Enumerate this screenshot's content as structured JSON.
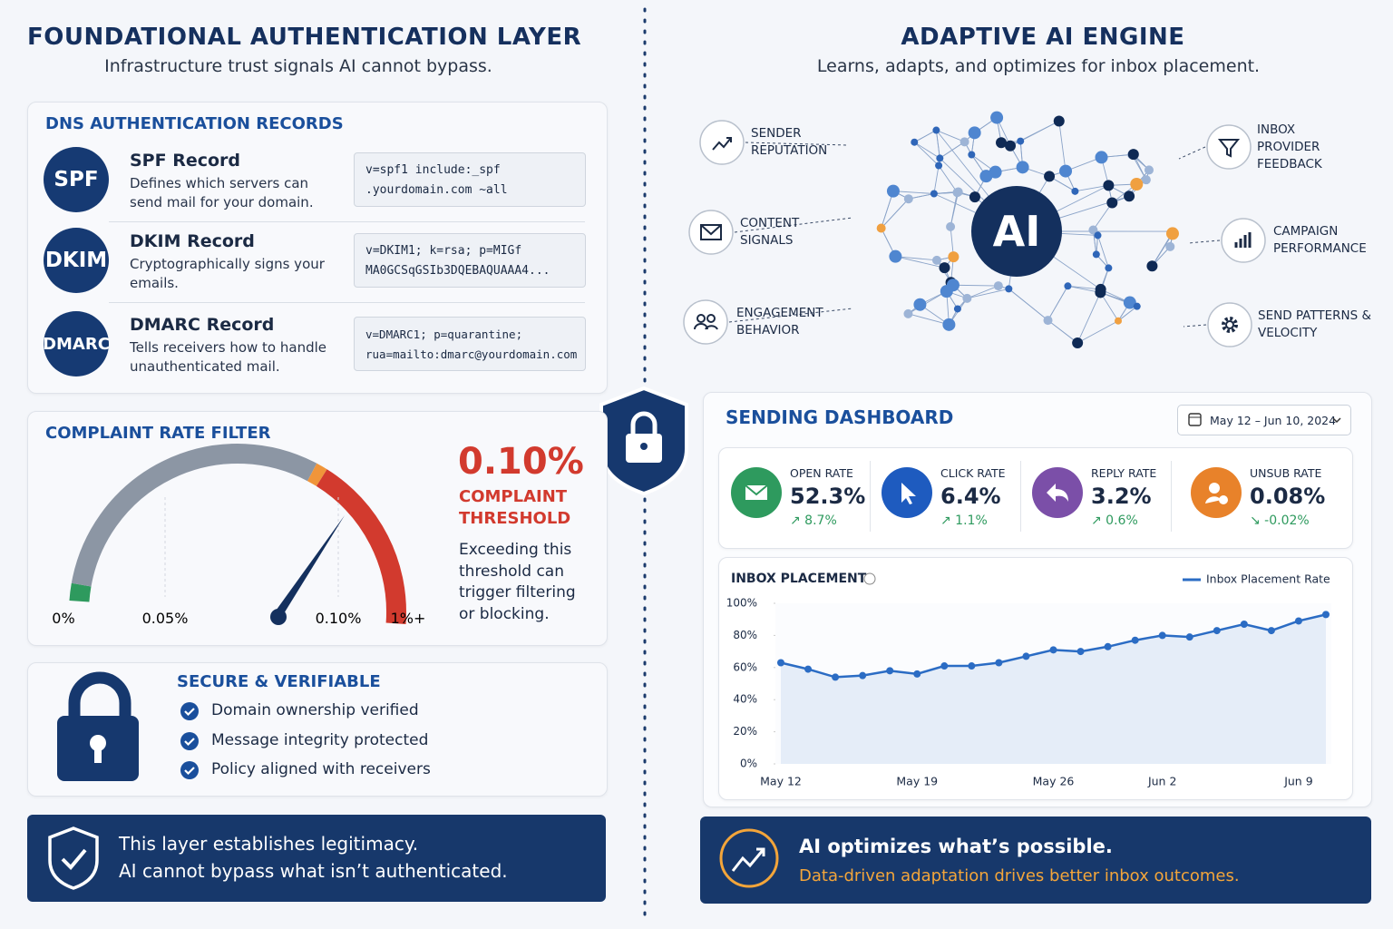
{
  "left": {
    "title": "FOUNDATIONAL AUTHENTICATION LAYER",
    "subtitle": "Infrastructure trust signals AI cannot bypass.",
    "dns": {
      "title": "DNS AUTHENTICATION RECORDS",
      "records": [
        {
          "badge": "SPF",
          "name": "SPF Record",
          "description": "Defines which servers can send mail for your domain.",
          "value": [
            "v=spf1 include:_spf",
            ".yourdomain.com ~all"
          ]
        },
        {
          "badge": "DKIM",
          "name": "DKIM Record",
          "description": "Cryptographically signs your emails.",
          "value": [
            "v=DKIM1; k=rsa; p=MIGf",
            "MA0GCSqGSIb3DQEBAQUAAA4..."
          ]
        },
        {
          "badge": "DMARC",
          "name": "DMARC Record",
          "description": "Tells receivers how to handle unauthenticated mail.",
          "value": [
            "v=DMARC1; p=quarantine;",
            "rua=mailto:dmarc@yourdomain.com"
          ]
        }
      ]
    },
    "complaint": {
      "title": "COMPLAINT RATE FILTER",
      "scale": [
        "0%",
        "0.05%",
        "0.10%",
        "1%+"
      ],
      "threshold": "0.10%",
      "threshold_label": "COMPLAINT THRESHOLD",
      "note": "Exceeding this threshold can trigger filtering or blocking."
    },
    "secure": {
      "title": "SECURE & VERIFIABLE",
      "items": [
        "Domain ownership verified",
        "Message integrity protected",
        "Policy aligned with receivers"
      ]
    },
    "banner": [
      "This layer establishes legitimacy.",
      "AI cannot bypass what isn’t authenticated."
    ]
  },
  "right": {
    "title": "ADAPTIVE AI ENGINE",
    "subtitle": "Learns, adapts, and optimizes for inbox placement.",
    "center": "AI",
    "signals": [
      "SENDER REPUTATION",
      "CONTENT SIGNALS",
      "ENGAGEMENT BEHAVIOR",
      "INBOX PROVIDER FEEDBACK",
      "CAMPAIGN PERFORMANCE",
      "SEND PATTERNS & VELOCITY"
    ],
    "dashboard": {
      "title": "SENDING DASHBOARD",
      "date_range": "May 12 – Jun 10, 2024",
      "kpis": [
        {
          "label": "OPEN RATE",
          "value": "52.3%",
          "change": "↗ 8.7%"
        },
        {
          "label": "CLICK RATE",
          "value": "6.4%",
          "change": "↗ 1.1%"
        },
        {
          "label": "REPLY RATE",
          "value": "3.2%",
          "change": "↗ 0.6%"
        },
        {
          "label": "UNSUB RATE",
          "value": "0.08%",
          "change": "↘ -0.02%"
        }
      ]
    },
    "banner": [
      "AI optimizes what’s possible.",
      "Data-driven adaptation drives better inbox outcomes."
    ]
  },
  "chart_data": {
    "type": "line",
    "title": "INBOX PLACEMENT",
    "categories": [
      "May 12",
      null,
      null,
      null,
      null,
      "May 19",
      null,
      null,
      null,
      null,
      "May 26",
      null,
      null,
      null,
      "Jun 2",
      null,
      null,
      null,
      null,
      "Jun 9",
      null
    ],
    "series": [
      {
        "name": "Inbox Placement Rate",
        "color": "#2b6cc4",
        "values": [
          63,
          59,
          54,
          55,
          58,
          56,
          61,
          61,
          63,
          67,
          71,
          70,
          73,
          77,
          80,
          79,
          83,
          87,
          83,
          89,
          93
        ]
      }
    ],
    "ylim": [
      0,
      100
    ],
    "yticks": [
      {
        "value": 0,
        "label": "0%"
      },
      {
        "value": 20,
        "label": "20%"
      },
      {
        "value": 40,
        "label": "40%"
      },
      {
        "value": 60,
        "label": "60%"
      },
      {
        "value": 80,
        "label": "80%"
      },
      {
        "value": 100,
        "label": "100%"
      }
    ],
    "area": true,
    "legend": "top-right"
  }
}
